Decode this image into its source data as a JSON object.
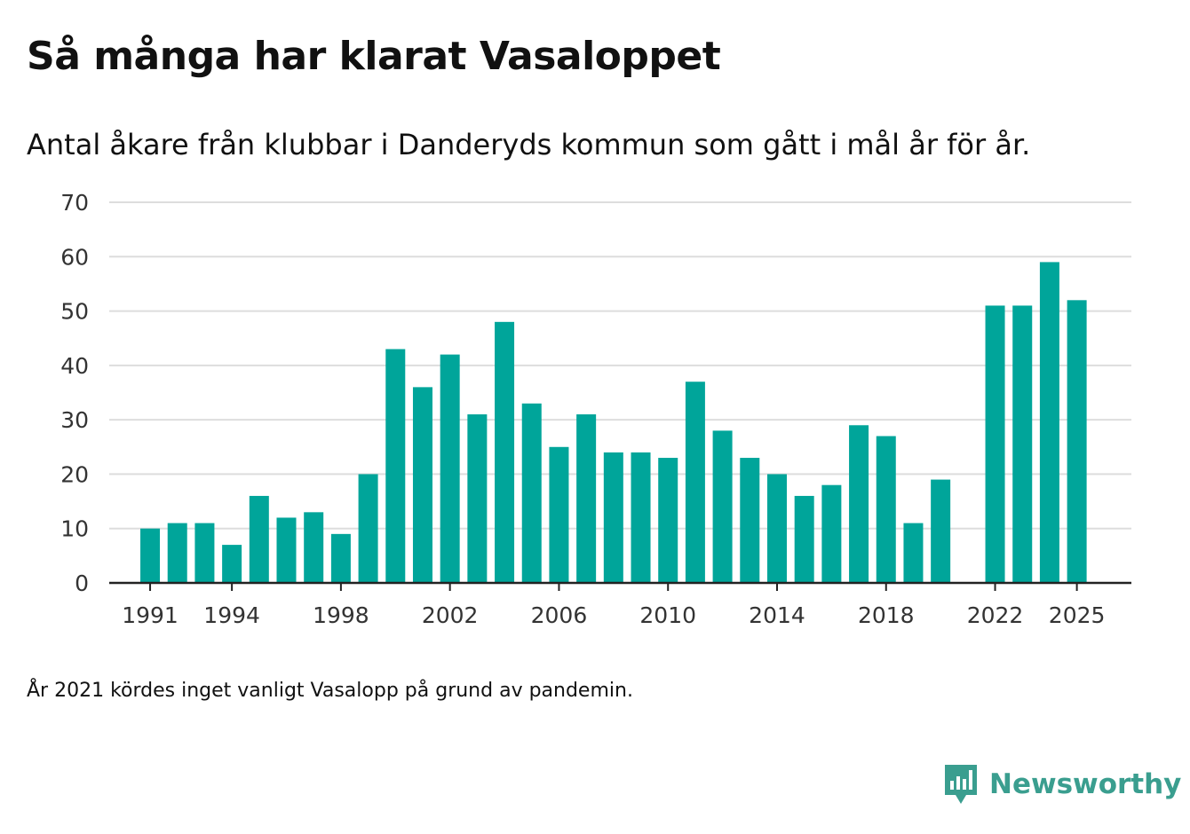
{
  "header": {
    "title": "Så många har klarat Vasaloppet",
    "subtitle": "Antal åkare från klubbar i Danderyds kommun som gått i mål år för år."
  },
  "footer": {
    "note": "År 2021 kördes inget vanligt Vasalopp på grund av pandemin."
  },
  "brand": {
    "name": "Newsworthy",
    "icon": "newsworthy-logo-icon",
    "color": "#3a9e8f"
  },
  "colors": {
    "bar": "#00a59a",
    "grid": "#dddddd",
    "axis": "#222222",
    "tick_label": "#333333"
  },
  "chart_data": {
    "type": "bar",
    "title": "Så många har klarat Vasaloppet",
    "subtitle": "Antal åkare från klubbar i Danderyds kommun som gått i mål år för år.",
    "xlabel": "",
    "ylabel": "",
    "x": [
      1991,
      1992,
      1993,
      1994,
      1995,
      1996,
      1997,
      1998,
      1999,
      2000,
      2001,
      2002,
      2003,
      2004,
      2005,
      2006,
      2007,
      2008,
      2009,
      2010,
      2011,
      2012,
      2013,
      2014,
      2015,
      2016,
      2017,
      2018,
      2019,
      2020,
      2021,
      2022,
      2023,
      2024,
      2025
    ],
    "values": [
      10,
      11,
      11,
      7,
      16,
      12,
      13,
      9,
      20,
      43,
      36,
      42,
      31,
      48,
      33,
      25,
      31,
      24,
      24,
      23,
      37,
      28,
      23,
      20,
      16,
      18,
      29,
      27,
      11,
      19,
      null,
      51,
      51,
      59,
      52
    ],
    "xticks": [
      1991,
      1994,
      1998,
      2002,
      2006,
      2010,
      2014,
      2018,
      2022,
      2025
    ],
    "yticks": [
      0,
      10,
      20,
      30,
      40,
      50,
      60,
      70
    ],
    "ylim": [
      0,
      70
    ],
    "xlim": [
      1989.5,
      2027
    ],
    "grid": true,
    "legend": "none"
  }
}
